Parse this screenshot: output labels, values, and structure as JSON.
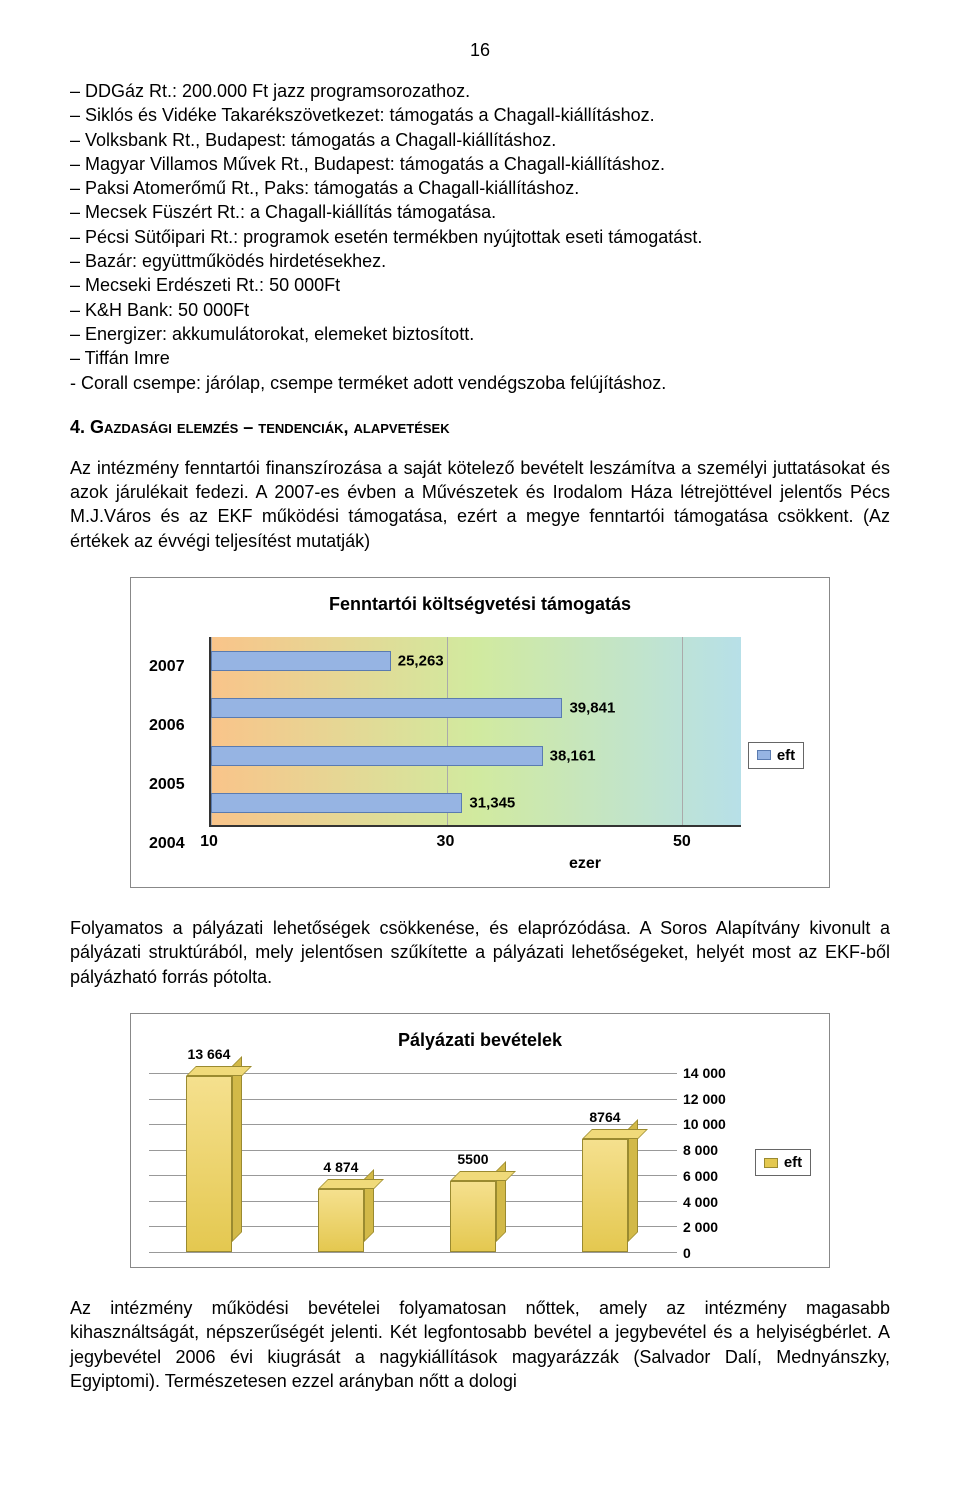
{
  "page_number": "16",
  "bullets": [
    "– DDGáz Rt.: 200.000 Ft jazz programsorozathoz.",
    "– Siklós és Vidéke Takarékszövetkezet: támogatás a Chagall-kiállításhoz.",
    "– Volksbank Rt., Budapest: támogatás a Chagall-kiállításhoz.",
    "– Magyar Villamos Művek Rt., Budapest: támogatás a Chagall-kiállításhoz.",
    "– Paksi Atomerőmű Rt., Paks: támogatás a Chagall-kiállításhoz.",
    "– Mecsek Füszért Rt.: a Chagall-kiállítás támogatása.",
    "– Pécsi Sütőipari Rt.: programok esetén termékben nyújtottak eseti támogatást.",
    "– Bazár: együttműködés hirdetésekhez.",
    "– Mecseki Erdészeti Rt.: 50 000Ft",
    "– K&H Bank: 50 000Ft",
    "– Energizer: akkumulátorokat, elemeket biztosított.",
    "– Tiffán Imre",
    "- Corall csempe: járólap, csempe terméket adott vendégszoba felújításhoz."
  ],
  "section_heading": "4. Gazdasági elemzés – tendenciák, alapvetések",
  "para1": "Az intézmény fenntartói finanszírozása a saját kötelező bevételt leszámítva a személyi juttatásokat és azok járulékait fedezi. A 2007-es évben a Művészetek és Irodalom Háza létrejöttével jelentős Pécs M.J.Város és az EKF működési támogatása, ezért a megye fenntartói támogatása csökkent. (Az értékek az évvégi teljesítést mutatják)",
  "chart1": {
    "type": "bar-horizontal",
    "title": "Fenntartói költségvetési támogatás",
    "categories": [
      "2007",
      "2006",
      "2005",
      "2004"
    ],
    "values": [
      25263,
      39841,
      38161,
      31345
    ],
    "value_labels": [
      "25,263",
      "39,841",
      "38,161",
      "31,345"
    ],
    "xticks": [
      10,
      30,
      50
    ],
    "xtick_labels": [
      "10",
      "30",
      "50"
    ],
    "xmin": 10,
    "xmax": 55,
    "x_unit": "ezer",
    "legend_label": "eft",
    "bar_fill": "#96b4e3",
    "bar_border": "#5a7bb0",
    "bg_gradient_from": "#f9c48a",
    "bg_gradient_mid": "#d1ea9f",
    "bg_gradient_to": "#b7e0e8",
    "label_fontsize": 16,
    "title_fontsize": 18
  },
  "para2": "Folyamatos a pályázati lehetőségek csökkenése, és elaprózódása. A Soros Alapítvány kivonult a pályázati struktúrából, mely jelentősen szűkítette a pályázati lehetőségeket, helyét most az EKF-ből pályázható forrás pótolta.",
  "chart2": {
    "type": "bar-vertical-3d",
    "title": "Pályázati bevételek",
    "values": [
      13664,
      4874,
      5500,
      8764
    ],
    "value_labels": [
      "13 664",
      "4 874",
      "5500",
      "8764"
    ],
    "yticks": [
      0,
      2000,
      4000,
      6000,
      8000,
      10000,
      12000,
      14000
    ],
    "ytick_labels": [
      "0",
      "2 000",
      "4 000",
      "6 000",
      "8 000",
      "10 000",
      "12 000",
      "14 000"
    ],
    "ymax": 14000,
    "legend_label": "eft",
    "bar_fill_top": "#f5e08e",
    "bar_fill_bottom": "#e4c850",
    "bar_border": "#9a8a30",
    "grid_color": "#999999",
    "title_fontsize": 18,
    "label_fontsize": 14
  },
  "para3": "Az intézmény működési bevételei folyamatosan nőttek, amely az intézmény magasabb kihasználtságát, népszerűségét jelenti. Két legfontosabb bevétel a jegybevétel és a helyiségbérlet. A jegybevétel 2006 évi kiugrását a nagykiállítások magyarázzák (Salvador Dalí, Mednyánszky, Egyiptomi). Természetesen ezzel arányban nőtt a dologi"
}
